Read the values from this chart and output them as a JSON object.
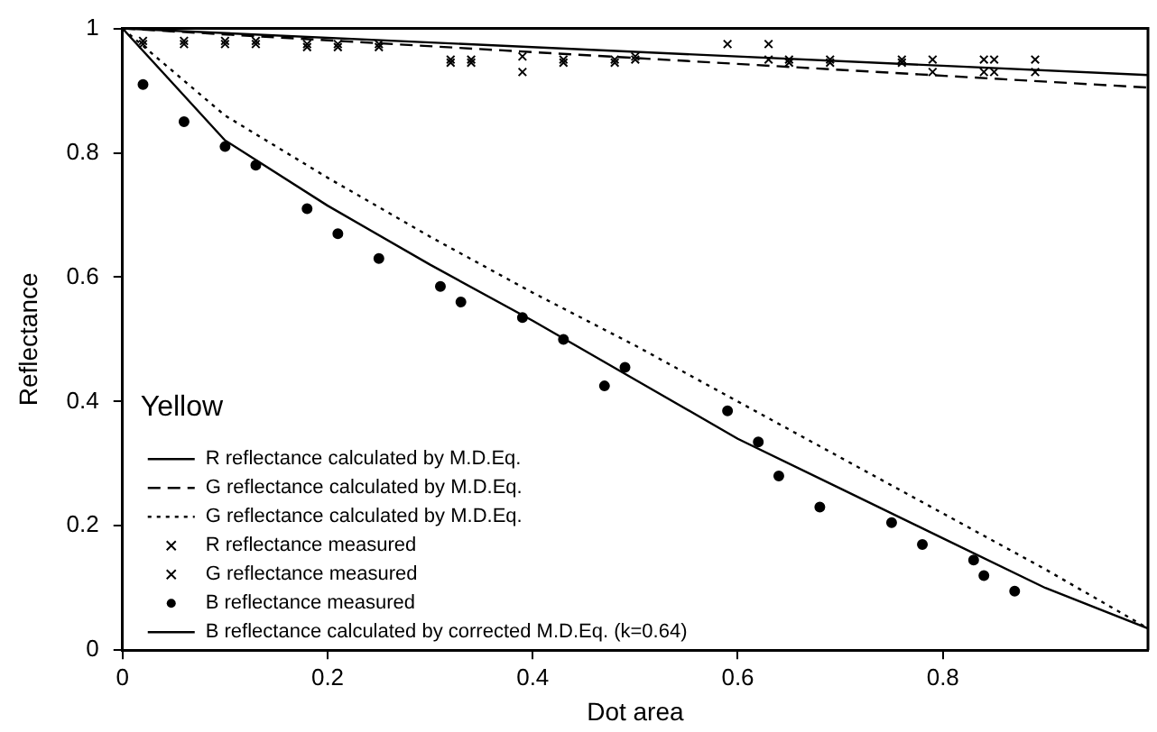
{
  "chart_data": {
    "type": "line",
    "xlabel": "Dot area",
    "ylabel": "Reflectance",
    "annotations": [
      "Yellow"
    ],
    "xlim": [
      0,
      1
    ],
    "ylim": [
      0,
      1
    ],
    "xticks": [
      0,
      0.2,
      0.4,
      0.6,
      0.8
    ],
    "yticks": [
      0,
      0.2,
      0.4,
      0.6,
      0.8,
      1
    ],
    "grid": false,
    "legend": "bottom left",
    "series": [
      {
        "name": "R reflectance calculated by M.D.Eq.",
        "type": "line",
        "line_style": "solid",
        "marker": "none",
        "color": "#000000",
        "x": [
          0,
          1
        ],
        "values": [
          1,
          0.925
        ]
      },
      {
        "name": "G reflectance calculated by M.D.Eq.",
        "type": "line",
        "line_style": "dashed",
        "marker": "none",
        "color": "#000000",
        "x": [
          0,
          1
        ],
        "values": [
          1,
          0.905
        ]
      },
      {
        "name": "G reflectance calculated by M.D.Eq.",
        "type": "line",
        "line_style": "dotted",
        "marker": "none",
        "color": "#000000",
        "x": [
          0,
          0.1,
          0.2,
          0.3,
          0.4,
          0.5,
          0.6,
          0.7,
          0.8,
          0.9,
          1
        ],
        "values": [
          1,
          0.86,
          0.76,
          0.665,
          0.575,
          0.49,
          0.4,
          0.31,
          0.22,
          0.13,
          0.035
        ]
      },
      {
        "name": "R reflectance measured",
        "type": "scatter",
        "marker": "cross",
        "color": "#000000",
        "x": [
          0.02,
          0.06,
          0.1,
          0.13,
          0.18,
          0.21,
          0.25,
          0.32,
          0.34,
          0.39,
          0.43,
          0.48,
          0.5,
          0.59,
          0.63,
          0.65,
          0.69,
          0.76,
          0.79,
          0.84,
          0.85,
          0.89
        ],
        "values": [
          0.98,
          0.98,
          0.98,
          0.98,
          0.975,
          0.975,
          0.975,
          0.95,
          0.95,
          0.955,
          0.95,
          0.95,
          0.955,
          0.975,
          0.975,
          0.95,
          0.95,
          0.95,
          0.95,
          0.95,
          0.95,
          0.95
        ]
      },
      {
        "name": "G reflectance measured",
        "type": "scatter",
        "marker": "cross",
        "color": "#000000",
        "x": [
          0.02,
          0.06,
          0.1,
          0.13,
          0.18,
          0.21,
          0.25,
          0.32,
          0.34,
          0.39,
          0.43,
          0.48,
          0.5,
          0.63,
          0.65,
          0.69,
          0.76,
          0.79,
          0.84,
          0.85,
          0.89
        ],
        "values": [
          0.975,
          0.975,
          0.975,
          0.975,
          0.97,
          0.97,
          0.97,
          0.945,
          0.945,
          0.93,
          0.945,
          0.945,
          0.95,
          0.95,
          0.945,
          0.945,
          0.945,
          0.93,
          0.93,
          0.93,
          0.93
        ]
      },
      {
        "name": "B reflectance measured",
        "type": "scatter",
        "marker": "circle",
        "color": "#000000",
        "x": [
          0.02,
          0.06,
          0.1,
          0.13,
          0.18,
          0.21,
          0.25,
          0.31,
          0.33,
          0.39,
          0.43,
          0.47,
          0.49,
          0.59,
          0.62,
          0.64,
          0.68,
          0.75,
          0.78,
          0.83,
          0.84,
          0.87
        ],
        "values": [
          0.91,
          0.85,
          0.81,
          0.78,
          0.71,
          0.67,
          0.63,
          0.585,
          0.56,
          0.535,
          0.5,
          0.425,
          0.455,
          0.385,
          0.335,
          0.28,
          0.23,
          0.205,
          0.17,
          0.145,
          0.12,
          0.095
        ]
      },
      {
        "name": "B reflectance calculated by corrected M.D.Eq. (k=0.64)",
        "type": "line",
        "line_style": "solid",
        "marker": "none",
        "color": "#000000",
        "x": [
          0,
          0.1,
          0.2,
          0.3,
          0.4,
          0.5,
          0.6,
          0.7,
          0.8,
          0.9,
          1
        ],
        "values": [
          1,
          0.82,
          0.715,
          0.62,
          0.53,
          0.435,
          0.34,
          0.26,
          0.18,
          0.1,
          0.035
        ]
      }
    ]
  }
}
